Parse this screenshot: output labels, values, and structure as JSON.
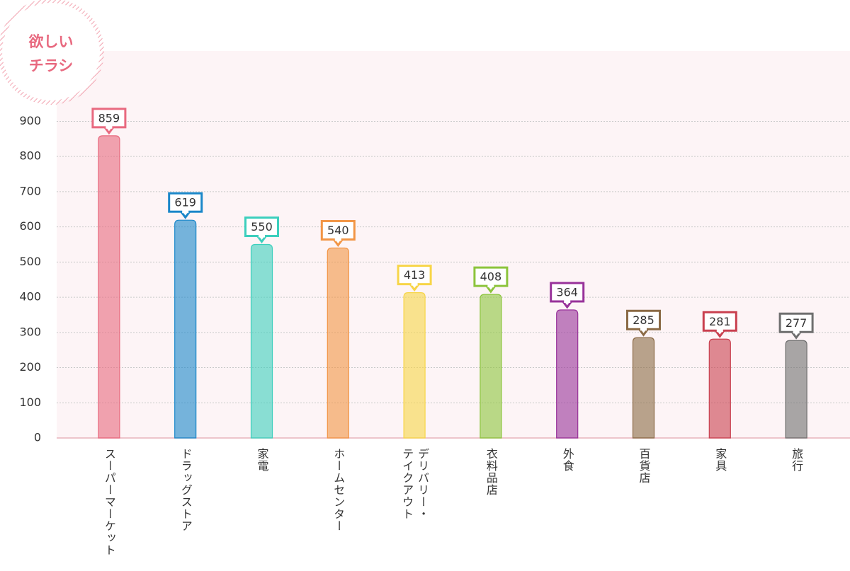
{
  "chart_data": {
    "type": "bar",
    "title": [
      "欲しい",
      "チラシ"
    ],
    "categories": [
      "スーパーマーケット",
      "ドラッグストア",
      "家電",
      "ホームセンター",
      "デリバリー・\nテイクアウト",
      "衣料品店",
      "外食",
      "百貨店",
      "家具",
      "旅行"
    ],
    "values": [
      859,
      619,
      550,
      540,
      413,
      408,
      364,
      285,
      281,
      277
    ],
    "colors": [
      "#e8697f",
      "#1a87c9",
      "#3ccfbd",
      "#f29545",
      "#f7d548",
      "#8cc43c",
      "#98329a",
      "#8b6a45",
      "#c9404f",
      "#6f6f6f"
    ],
    "ylim": [
      0,
      1100
    ],
    "yticks": [
      0,
      100,
      200,
      300,
      400,
      500,
      600,
      700,
      800,
      900
    ],
    "grid": true
  }
}
